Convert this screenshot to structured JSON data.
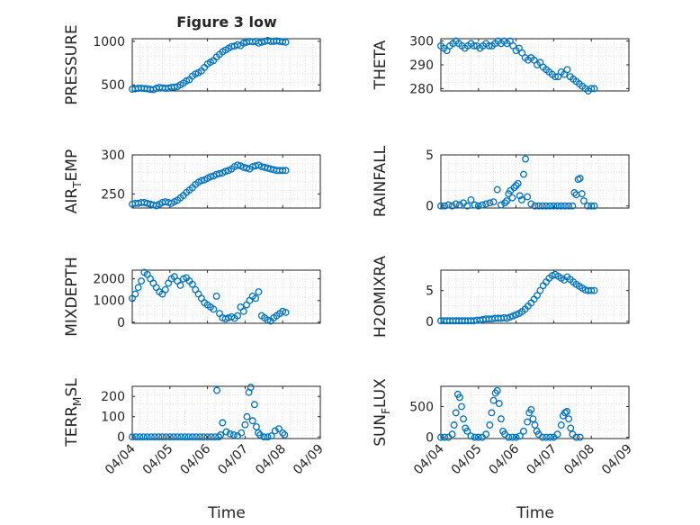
{
  "figure": {
    "title": "Figure 3 low",
    "xlabel": "Time"
  },
  "chart_data": [
    {
      "type": "scatter",
      "ylabel": "PRESSURE",
      "title": "Figure 3 low",
      "xlim": [
        0,
        5
      ],
      "ylim": [
        430,
        1030
      ],
      "yticks": [
        500,
        1000
      ],
      "ytick_labels": [
        "500",
        "1000"
      ],
      "xticks": [
        0,
        1,
        2,
        3,
        4,
        5
      ],
      "xtick_labels": [],
      "x": [
        0.0,
        0.08,
        0.16,
        0.24,
        0.32,
        0.4,
        0.48,
        0.56,
        0.64,
        0.72,
        0.8,
        0.88,
        0.96,
        1.04,
        1.12,
        1.2,
        1.28,
        1.36,
        1.44,
        1.52,
        1.6,
        1.68,
        1.76,
        1.84,
        1.92,
        2.0,
        2.08,
        2.16,
        2.24,
        2.32,
        2.4,
        2.48,
        2.56,
        2.64,
        2.72,
        2.8,
        2.88,
        2.96,
        3.04,
        3.12,
        3.2,
        3.28,
        3.36,
        3.44,
        3.52,
        3.6,
        3.68,
        3.76,
        3.84,
        3.92,
        4.0,
        4.08
      ],
      "y": [
        450,
        455,
        460,
        462,
        458,
        455,
        448,
        445,
        460,
        470,
        465,
        460,
        462,
        470,
        475,
        480,
        500,
        520,
        545,
        560,
        600,
        625,
        640,
        660,
        700,
        740,
        760,
        780,
        820,
        850,
        880,
        900,
        920,
        940,
        945,
        960,
        950,
        980,
        990,
        1000,
        995,
        1000,
        980,
        990,
        1000,
        1010,
        1000,
        1000,
        1005,
        1000,
        995,
        990
      ]
    },
    {
      "type": "scatter",
      "ylabel": "THETA",
      "xlim": [
        0,
        5
      ],
      "ylim": [
        279,
        301
      ],
      "yticks": [
        280,
        290,
        300
      ],
      "ytick_labels": [
        "280",
        "290",
        "300"
      ],
      "xticks": [
        0,
        1,
        2,
        3,
        4,
        5
      ],
      "xtick_labels": [],
      "x": [
        0.0,
        0.08,
        0.16,
        0.24,
        0.32,
        0.4,
        0.48,
        0.56,
        0.64,
        0.72,
        0.8,
        0.88,
        0.96,
        1.04,
        1.12,
        1.2,
        1.28,
        1.36,
        1.44,
        1.52,
        1.6,
        1.68,
        1.76,
        1.84,
        1.92,
        2.0,
        2.08,
        2.16,
        2.24,
        2.32,
        2.4,
        2.48,
        2.56,
        2.64,
        2.72,
        2.8,
        2.88,
        2.96,
        3.04,
        3.12,
        3.2,
        3.28,
        3.36,
        3.44,
        3.52,
        3.6,
        3.68,
        3.76,
        3.84,
        3.92,
        4.0,
        4.08
      ],
      "y": [
        298,
        297,
        296,
        298,
        299,
        300,
        299,
        298,
        297,
        298,
        299,
        298,
        298,
        297,
        298,
        299,
        298,
        298,
        299,
        300,
        299,
        300,
        299,
        300,
        298,
        296,
        297,
        295,
        293,
        292,
        293,
        292,
        290,
        291,
        289,
        288,
        287,
        286,
        285,
        285,
        287,
        286,
        288,
        285,
        284,
        283,
        282,
        281,
        280,
        279,
        280,
        280
      ]
    },
    {
      "type": "scatter",
      "ylabel": "AIR_TEMP",
      "xlim": [
        0,
        5
      ],
      "ylim": [
        232,
        300
      ],
      "yticks": [
        250,
        300
      ],
      "ytick_labels": [
        "250",
        "300"
      ],
      "xticks": [
        0,
        1,
        2,
        3,
        4,
        5
      ],
      "xtick_labels": [],
      "x": [
        0.0,
        0.08,
        0.16,
        0.24,
        0.32,
        0.4,
        0.48,
        0.56,
        0.64,
        0.72,
        0.8,
        0.88,
        0.96,
        1.04,
        1.12,
        1.2,
        1.28,
        1.36,
        1.44,
        1.52,
        1.6,
        1.68,
        1.76,
        1.84,
        1.92,
        2.0,
        2.08,
        2.16,
        2.24,
        2.32,
        2.4,
        2.48,
        2.56,
        2.64,
        2.72,
        2.8,
        2.88,
        2.96,
        3.04,
        3.12,
        3.2,
        3.28,
        3.36,
        3.44,
        3.52,
        3.6,
        3.68,
        3.76,
        3.84,
        3.92,
        4.0,
        4.08
      ],
      "y": [
        237,
        238,
        238,
        239,
        239,
        238,
        237,
        236,
        235,
        237,
        239,
        240,
        239,
        238,
        240,
        242,
        245,
        248,
        252,
        255,
        258,
        262,
        265,
        267,
        268,
        270,
        272,
        273,
        275,
        276,
        277,
        279,
        280,
        282,
        285,
        287,
        286,
        284,
        283,
        282,
        285,
        286,
        287,
        285,
        284,
        283,
        282,
        281,
        280,
        280,
        280,
        280
      ]
    },
    {
      "type": "scatter",
      "ylabel": "RAINFALL",
      "xlim": [
        0,
        5
      ],
      "ylim": [
        -0.2,
        5
      ],
      "yticks": [
        0,
        5
      ],
      "ytick_labels": [
        "0",
        "5"
      ],
      "xticks": [
        0,
        1,
        2,
        3,
        4,
        5
      ],
      "xtick_labels": [],
      "x": [
        0.0,
        0.1,
        0.2,
        0.3,
        0.4,
        0.5,
        0.6,
        0.7,
        0.8,
        0.9,
        1.0,
        1.1,
        1.2,
        1.3,
        1.4,
        1.5,
        1.6,
        1.7,
        1.75,
        1.8,
        1.85,
        1.9,
        1.95,
        2.0,
        2.05,
        2.1,
        2.15,
        2.2,
        2.25,
        2.3,
        2.4,
        2.5,
        2.6,
        2.7,
        2.8,
        2.9,
        3.0,
        3.1,
        3.2,
        3.3,
        3.4,
        3.5,
        3.55,
        3.6,
        3.65,
        3.7,
        3.75,
        3.8,
        3.9,
        4.0,
        4.08
      ],
      "y": [
        0,
        0,
        0.1,
        0,
        0.2,
        0.1,
        0.3,
        0,
        0.6,
        0.1,
        0,
        0.1,
        0.2,
        0.3,
        0.4,
        1.6,
        0.1,
        0.3,
        0.5,
        1.2,
        1.5,
        0.8,
        1.8,
        2.0,
        2.2,
        1.0,
        0.6,
        3.1,
        4.6,
        0.9,
        0.2,
        0,
        0,
        0,
        0,
        0,
        0,
        0,
        0,
        0,
        0,
        0,
        1.3,
        1.1,
        2.6,
        2.7,
        1.2,
        0.5,
        0,
        0,
        0
      ]
    },
    {
      "type": "scatter",
      "ylabel": "MIXDEPTH",
      "xlim": [
        0,
        5
      ],
      "ylim": [
        -50,
        2400
      ],
      "yticks": [
        0,
        1000,
        2000
      ],
      "ytick_labels": [
        "0",
        "1000",
        "2000"
      ],
      "xticks": [
        0,
        1,
        2,
        3,
        4,
        5
      ],
      "xtick_labels": [],
      "x": [
        0.0,
        0.08,
        0.16,
        0.24,
        0.32,
        0.4,
        0.48,
        0.56,
        0.64,
        0.72,
        0.8,
        0.88,
        0.96,
        1.04,
        1.12,
        1.2,
        1.28,
        1.36,
        1.44,
        1.52,
        1.6,
        1.68,
        1.76,
        1.84,
        1.92,
        2.0,
        2.08,
        2.16,
        2.24,
        2.32,
        2.4,
        2.48,
        2.56,
        2.64,
        2.72,
        2.8,
        2.88,
        2.96,
        3.04,
        3.12,
        3.2,
        3.28,
        3.36,
        3.44,
        3.52,
        3.6,
        3.68,
        3.76,
        3.84,
        3.92,
        4.0,
        4.08
      ],
      "y": [
        1100,
        1300,
        1600,
        1900,
        2300,
        2200,
        2000,
        1800,
        1600,
        1400,
        1300,
        1500,
        1800,
        2000,
        2100,
        1900,
        1700,
        2000,
        2050,
        1900,
        1750,
        1500,
        1300,
        1100,
        900,
        800,
        700,
        600,
        1200,
        400,
        200,
        150,
        200,
        250,
        180,
        300,
        700,
        500,
        800,
        1000,
        1200,
        1100,
        1400,
        300,
        200,
        100,
        50,
        200,
        300,
        400,
        500,
        450
      ]
    },
    {
      "type": "scatter",
      "ylabel": "H2OMIXRA",
      "xlim": [
        0,
        5
      ],
      "ylim": [
        -0.3,
        8.3
      ],
      "yticks": [
        0,
        5
      ],
      "ytick_labels": [
        "0",
        "5"
      ],
      "xticks": [
        0,
        1,
        2,
        3,
        4,
        5
      ],
      "xtick_labels": [],
      "x": [
        0.0,
        0.08,
        0.16,
        0.24,
        0.32,
        0.4,
        0.48,
        0.56,
        0.64,
        0.72,
        0.8,
        0.88,
        0.96,
        1.04,
        1.12,
        1.2,
        1.28,
        1.36,
        1.44,
        1.52,
        1.6,
        1.68,
        1.76,
        1.84,
        1.92,
        2.0,
        2.08,
        2.16,
        2.24,
        2.32,
        2.4,
        2.48,
        2.56,
        2.64,
        2.72,
        2.8,
        2.88,
        2.96,
        3.04,
        3.12,
        3.2,
        3.28,
        3.36,
        3.44,
        3.52,
        3.6,
        3.68,
        3.76,
        3.84,
        3.92,
        4.0,
        4.08
      ],
      "y": [
        0.1,
        0.1,
        0.1,
        0.1,
        0.1,
        0.1,
        0.1,
        0.1,
        0.1,
        0.1,
        0.1,
        0.1,
        0.2,
        0.2,
        0.3,
        0.4,
        0.4,
        0.4,
        0.5,
        0.5,
        0.5,
        0.6,
        0.5,
        0.7,
        0.9,
        1.1,
        1.3,
        1.6,
        2.0,
        2.5,
        3.0,
        3.6,
        4.2,
        5.0,
        5.8,
        6.4,
        7.0,
        7.4,
        7.6,
        7.3,
        7.0,
        6.7,
        7.2,
        6.8,
        6.4,
        6.0,
        5.7,
        5.4,
        5.1,
        5.0,
        5.0,
        5.0
      ]
    },
    {
      "type": "scatter",
      "ylabel": "TERR_MSL",
      "xlim": [
        0,
        5
      ],
      "ylim": [
        -8,
        250
      ],
      "yticks": [
        0,
        100,
        200
      ],
      "ytick_labels": [
        "0",
        "100",
        "200"
      ],
      "xticks": [
        0,
        1,
        2,
        3,
        4,
        5
      ],
      "xtick_labels": [
        "04/04",
        "04/05",
        "04/06",
        "04/07",
        "04/08",
        "04/09"
      ],
      "x": [
        0.0,
        0.1,
        0.2,
        0.3,
        0.4,
        0.5,
        0.6,
        0.7,
        0.8,
        0.9,
        1.0,
        1.1,
        1.2,
        1.3,
        1.4,
        1.5,
        1.6,
        1.7,
        1.8,
        1.9,
        2.0,
        2.1,
        2.2,
        2.25,
        2.3,
        2.35,
        2.4,
        2.5,
        2.6,
        2.7,
        2.8,
        2.9,
        3.0,
        3.05,
        3.1,
        3.15,
        3.2,
        3.25,
        3.3,
        3.35,
        3.4,
        3.5,
        3.6,
        3.7,
        3.8,
        3.9,
        4.0,
        4.05
      ],
      "y": [
        0,
        0,
        0,
        0,
        0,
        0,
        0,
        0,
        0,
        0,
        0,
        0,
        0,
        0,
        0,
        0,
        0,
        0,
        0,
        0,
        0,
        0,
        0,
        230,
        0,
        10,
        70,
        25,
        15,
        10,
        5,
        20,
        60,
        100,
        220,
        245,
        80,
        160,
        50,
        20,
        10,
        0,
        0,
        5,
        30,
        40,
        20,
        10
      ]
    },
    {
      "type": "scatter",
      "ylabel": "SUN_FLUX",
      "xlim": [
        0,
        5
      ],
      "ylim": [
        -20,
        830
      ],
      "yticks": [
        0,
        500
      ],
      "ytick_labels": [
        "0",
        "500"
      ],
      "xticks": [
        0,
        1,
        2,
        3,
        4,
        5
      ],
      "xtick_labels": [
        "04/04",
        "04/05",
        "04/06",
        "04/07",
        "04/08",
        "04/09"
      ],
      "x": [
        0.0,
        0.1,
        0.2,
        0.3,
        0.35,
        0.4,
        0.45,
        0.5,
        0.55,
        0.6,
        0.65,
        0.7,
        0.8,
        0.9,
        1.0,
        1.1,
        1.2,
        1.3,
        1.35,
        1.4,
        1.45,
        1.5,
        1.55,
        1.6,
        1.65,
        1.7,
        1.8,
        1.9,
        2.0,
        2.1,
        2.2,
        2.3,
        2.35,
        2.4,
        2.45,
        2.5,
        2.55,
        2.6,
        2.7,
        2.8,
        2.9,
        3.0,
        3.1,
        3.2,
        3.25,
        3.3,
        3.35,
        3.4,
        3.45,
        3.5,
        3.6,
        3.7
      ],
      "y": [
        0,
        0,
        0,
        50,
        200,
        400,
        700,
        650,
        500,
        300,
        150,
        100,
        20,
        0,
        0,
        0,
        50,
        200,
        400,
        600,
        720,
        760,
        550,
        300,
        100,
        50,
        0,
        0,
        0,
        20,
        100,
        250,
        400,
        450,
        300,
        200,
        100,
        50,
        0,
        0,
        0,
        0,
        50,
        200,
        350,
        400,
        420,
        300,
        150,
        50,
        0,
        0
      ]
    }
  ]
}
